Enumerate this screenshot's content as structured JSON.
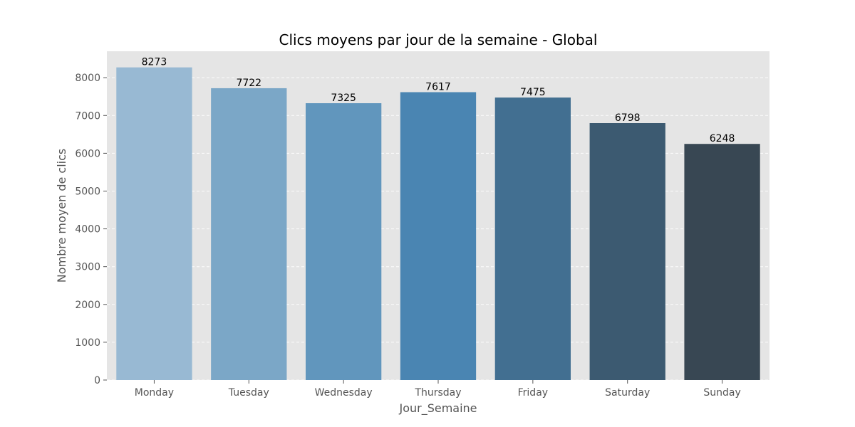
{
  "chart_data": {
    "type": "bar",
    "title": "Clics moyens par jour de la semaine - Global",
    "xlabel": "Jour_Semaine",
    "ylabel": "Nombre moyen de clics",
    "categories": [
      "Monday",
      "Tuesday",
      "Wednesday",
      "Thursday",
      "Friday",
      "Saturday",
      "Sunday"
    ],
    "values": [
      8273,
      7722,
      7325,
      7617,
      7475,
      6798,
      6248
    ],
    "ylim": [
      0,
      8700
    ],
    "yticks": [
      0,
      1000,
      2000,
      3000,
      4000,
      5000,
      6000,
      7000,
      8000
    ],
    "colors": [
      "#98b9d3",
      "#7ba7c7",
      "#6196bd",
      "#4a85b2",
      "#426f91",
      "#3c5a71",
      "#384753"
    ],
    "plot_background": "#e5e5e5",
    "grid": true
  }
}
